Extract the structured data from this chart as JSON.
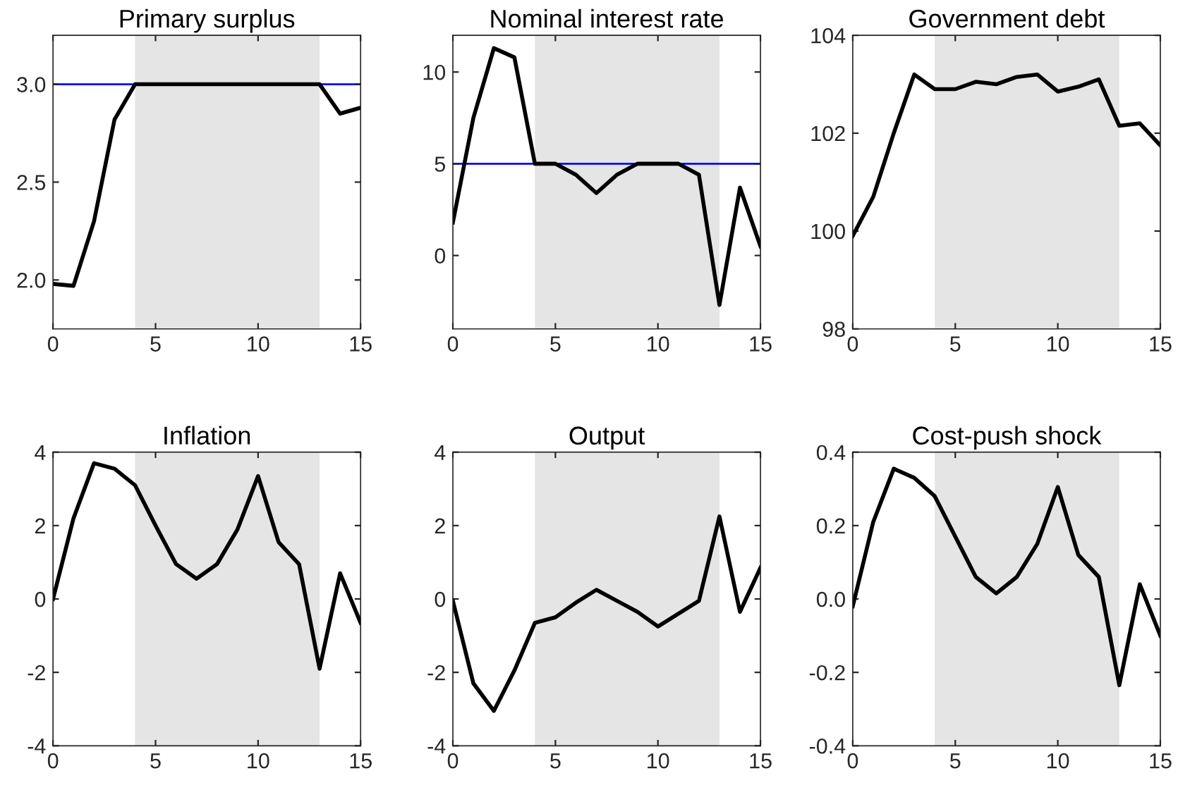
{
  "chart_data": [
    {
      "type": "line",
      "title": "Primary surplus",
      "x": [
        0,
        1,
        2,
        3,
        4,
        5,
        6,
        7,
        8,
        9,
        10,
        11,
        12,
        13,
        14,
        15
      ],
      "series": [
        {
          "color": "#000000",
          "values": [
            1.98,
            1.97,
            2.3,
            2.82,
            3.0,
            3.0,
            3.0,
            3.0,
            3.0,
            3.0,
            3.0,
            3.0,
            3.0,
            3.0,
            2.85,
            2.88
          ]
        }
      ],
      "xlim": [
        0,
        15
      ],
      "xticks": [
        0,
        5,
        10,
        15
      ],
      "ylim": [
        1.75,
        3.25
      ],
      "yticks": [
        {
          "value": 2,
          "label": "2.0"
        },
        {
          "value": 2.5,
          "label": "2.5"
        },
        {
          "value": 3,
          "label": "3.0"
        }
      ],
      "ref_lines": [
        {
          "axis": "y",
          "value": 3,
          "color": "#0000ff"
        }
      ],
      "bands": [
        {
          "axis": "x",
          "from": 4,
          "to": 13,
          "color": "#e5e5e5"
        }
      ]
    },
    {
      "type": "line",
      "title": "Nominal interest rate",
      "x": [
        0,
        1,
        2,
        3,
        4,
        5,
        6,
        7,
        8,
        9,
        10,
        11,
        12,
        13,
        14,
        15
      ],
      "series": [
        {
          "color": "#000000",
          "values": [
            1.8,
            7.5,
            11.3,
            10.8,
            5.0,
            5.0,
            4.4,
            3.4,
            4.4,
            5.0,
            5.0,
            5.0,
            4.4,
            -2.7,
            3.7,
            0.5
          ]
        }
      ],
      "xlim": [
        0,
        15
      ],
      "xticks": [
        0,
        5,
        10,
        15
      ],
      "ylim": [
        -4,
        12
      ],
      "yticks": [
        0,
        5,
        10
      ],
      "ref_lines": [
        {
          "axis": "y",
          "value": 5,
          "color": "#0000ff"
        }
      ],
      "bands": [
        {
          "axis": "x",
          "from": 4,
          "to": 13,
          "color": "#e5e5e5"
        }
      ]
    },
    {
      "type": "line",
      "title": "Government debt",
      "x": [
        0,
        1,
        2,
        3,
        4,
        5,
        6,
        7,
        8,
        9,
        10,
        11,
        12,
        13,
        14,
        15
      ],
      "series": [
        {
          "color": "#000000",
          "values": [
            99.9,
            100.7,
            102.0,
            103.2,
            102.9,
            102.9,
            103.05,
            103.0,
            103.15,
            103.2,
            102.85,
            102.95,
            103.1,
            102.15,
            102.2,
            101.75
          ]
        }
      ],
      "xlim": [
        0,
        15
      ],
      "xticks": [
        0,
        5,
        10,
        15
      ],
      "ylim": [
        98,
        104
      ],
      "yticks": [
        98,
        100,
        102,
        104
      ],
      "bands": [
        {
          "axis": "x",
          "from": 4,
          "to": 13,
          "color": "#e5e5e5"
        }
      ]
    },
    {
      "type": "line",
      "title": "Inflation",
      "x": [
        0,
        1,
        2,
        3,
        4,
        5,
        6,
        7,
        8,
        9,
        10,
        11,
        12,
        13,
        14,
        15
      ],
      "series": [
        {
          "color": "#000000",
          "values": [
            0,
            2.2,
            3.7,
            3.55,
            3.1,
            2.0,
            0.95,
            0.55,
            0.95,
            1.9,
            3.35,
            1.55,
            0.95,
            -1.9,
            0.7,
            -0.65
          ]
        }
      ],
      "xlim": [
        0,
        15
      ],
      "xticks": [
        0,
        5,
        10,
        15
      ],
      "ylim": [
        -4,
        4
      ],
      "yticks": [
        -4,
        -2,
        0,
        2,
        4
      ],
      "bands": [
        {
          "axis": "x",
          "from": 4,
          "to": 13,
          "color": "#e5e5e5"
        }
      ]
    },
    {
      "type": "line",
      "title": "Output",
      "x": [
        0,
        1,
        2,
        3,
        4,
        5,
        6,
        7,
        8,
        9,
        10,
        11,
        12,
        13,
        14,
        15
      ],
      "series": [
        {
          "color": "#000000",
          "values": [
            -0.05,
            -2.3,
            -3.05,
            -1.95,
            -0.65,
            -0.5,
            -0.1,
            0.25,
            -0.05,
            -0.35,
            -0.75,
            -0.4,
            -0.05,
            2.25,
            -0.35,
            0.85
          ]
        }
      ],
      "xlim": [
        0,
        15
      ],
      "xticks": [
        0,
        5,
        10,
        15
      ],
      "ylim": [
        -4,
        4
      ],
      "yticks": [
        -4,
        -2,
        0,
        2,
        4
      ],
      "bands": [
        {
          "axis": "x",
          "from": 4,
          "to": 13,
          "color": "#e5e5e5"
        }
      ]
    },
    {
      "type": "line",
      "title": "Cost-push shock",
      "x": [
        0,
        1,
        2,
        3,
        4,
        5,
        6,
        7,
        8,
        9,
        10,
        11,
        12,
        13,
        14,
        15
      ],
      "series": [
        {
          "color": "#000000",
          "values": [
            -0.02,
            0.21,
            0.355,
            0.33,
            0.28,
            0.17,
            0.06,
            0.015,
            0.06,
            0.15,
            0.305,
            0.12,
            0.06,
            -0.235,
            0.04,
            -0.1
          ]
        }
      ],
      "xlim": [
        0,
        15
      ],
      "xticks": [
        0,
        5,
        10,
        15
      ],
      "ylim": [
        -0.4,
        0.4
      ],
      "yticks": [
        -0.4,
        -0.2,
        {
          "value": 0,
          "label": "0.0"
        },
        0.2,
        0.4
      ],
      "bands": [
        {
          "axis": "x",
          "from": 4,
          "to": 13,
          "color": "#e5e5e5"
        }
      ]
    }
  ]
}
